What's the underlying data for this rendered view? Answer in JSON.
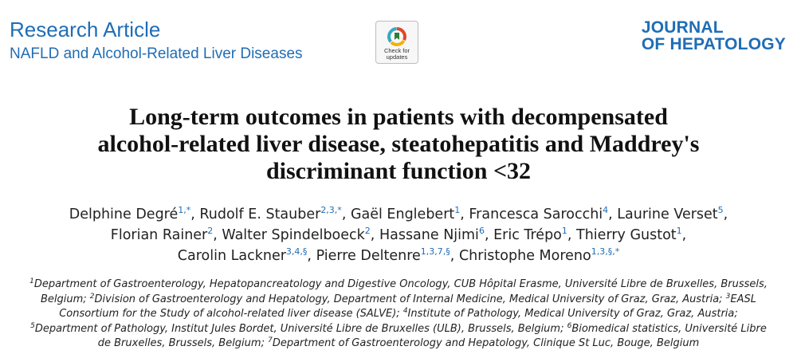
{
  "header": {
    "article_type": "Research Article",
    "section": "NAFLD and Alcohol-Related Liver Diseases",
    "badge_text_1": "Check for",
    "badge_text_2": "updates",
    "journal_line1": "JOURNAL",
    "journal_line2": "OF HEPATOLOGY"
  },
  "title": {
    "line1": "Long-term outcomes in patients with decompensated",
    "line2": "alcohol-related liver disease, steatohepatitis and Maddrey's",
    "line3": "discriminant function <32"
  },
  "authors": [
    {
      "name": "Delphine Degré",
      "sup": "1,*",
      "sep": ", "
    },
    {
      "name": "Rudolf E. Stauber",
      "sup": "2,3,*",
      "sep": ", "
    },
    {
      "name": "Gaël Englebert",
      "sup": "1",
      "sep": ", "
    },
    {
      "name": "Francesca Sarocchi",
      "sup": "4",
      "sep": ", "
    },
    {
      "name": "Laurine Verset",
      "sup": "5",
      "sep": ","
    },
    {
      "name": "Florian Rainer",
      "sup": "2",
      "sep": ", "
    },
    {
      "name": "Walter Spindelboeck",
      "sup": "2",
      "sep": ", "
    },
    {
      "name": "Hassane Njimi",
      "sup": "6",
      "sep": ", "
    },
    {
      "name": "Eric Trépo",
      "sup": "1",
      "sep": ", "
    },
    {
      "name": "Thierry Gustot",
      "sup": "1",
      "sep": ","
    },
    {
      "name": "Carolin Lackner",
      "sup": "3,4,§",
      "sep": ", "
    },
    {
      "name": "Pierre Deltenre",
      "sup": "1,3,7,§",
      "sep": ", "
    },
    {
      "name": "Christophe Moreno",
      "sup": "1,3,§,*",
      "sep": ""
    }
  ],
  "affiliations": [
    {
      "num": "1",
      "text": "Department of Gastroenterology, Hepatopancreatology and Digestive Oncology, CUB Hôpital Erasme, Université Libre de Bruxelles, Brussels, Belgium; "
    },
    {
      "num": "2",
      "text": "Division of Gastroenterology and Hepatology, Department of Internal Medicine, Medical University of Graz, Graz, Austria; "
    },
    {
      "num": "3",
      "text": "EASL Consortium for the Study of alcohol-related liver disease (SALVE); "
    },
    {
      "num": "4",
      "text": "Institute of Pathology, Medical University of Graz, Graz, Austria; "
    },
    {
      "num": "5",
      "text": "Department of Pathology, Institut Jules Bordet, Université Libre de Bruxelles (ULB), Brussels, Belgium; "
    },
    {
      "num": "6",
      "text": "Biomedical statistics, Université Libre de Bruxelles, Brussels, Belgium; "
    },
    {
      "num": "7",
      "text": "Department of Gastroenterology and Hepatology, Clinique St Luc, Bouge, Belgium"
    }
  ],
  "colors": {
    "accent": "#1f6db5",
    "text": "#222222"
  }
}
